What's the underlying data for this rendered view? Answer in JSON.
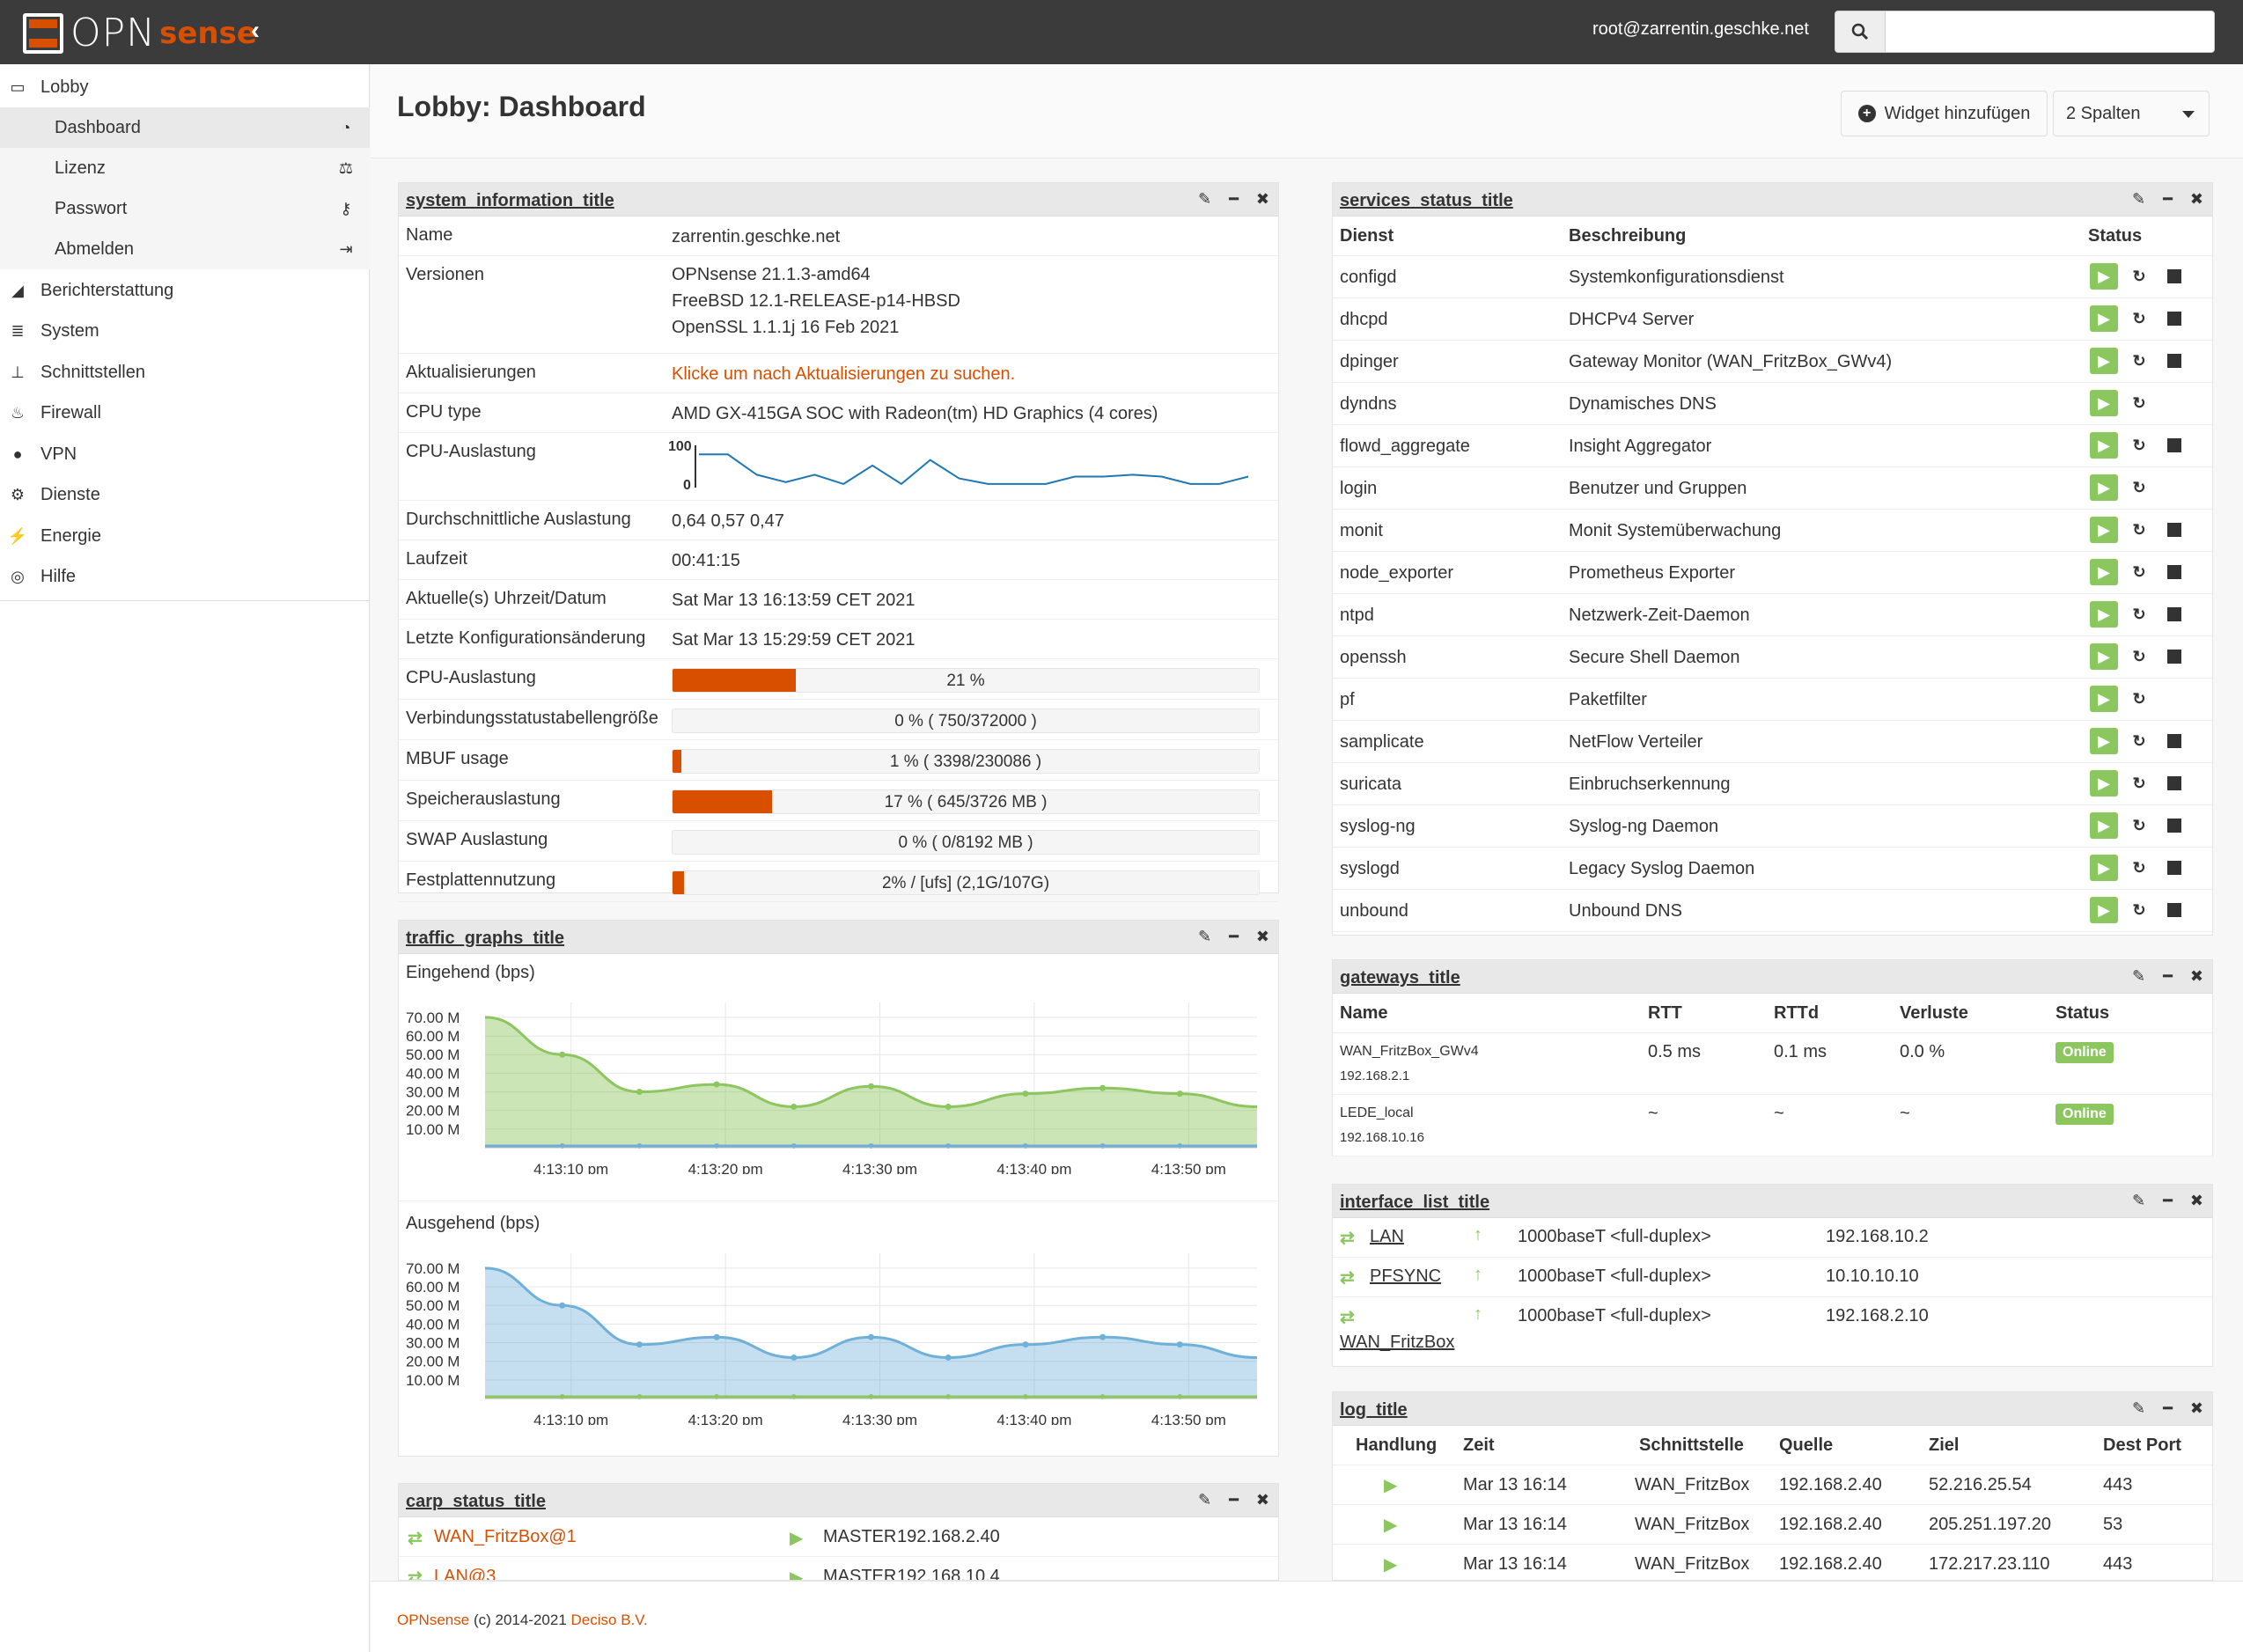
{
  "header": {
    "logo_text": "OPN",
    "logo_accent": "sense",
    "collapse_icon": "chevron-left-icon",
    "user": "root@zarrentin.geschke.net",
    "search_placeholder": ""
  },
  "sidebar": {
    "items": [
      {
        "label": "Lobby",
        "icon": "laptop-icon"
      },
      {
        "label": "Berichterstattung",
        "icon": "area-chart-icon"
      },
      {
        "label": "System",
        "icon": "server-icon"
      },
      {
        "label": "Schnittstellen",
        "icon": "sitemap-icon"
      },
      {
        "label": "Firewall",
        "icon": "fire-icon"
      },
      {
        "label": "VPN",
        "icon": "globe-icon"
      },
      {
        "label": "Dienste",
        "icon": "cog-icon"
      },
      {
        "label": "Energie",
        "icon": "plug-icon"
      },
      {
        "label": "Hilfe",
        "icon": "life-ring-icon"
      }
    ],
    "lobby_sub": [
      {
        "label": "Dashboard",
        "icon": "dashboard-icon"
      },
      {
        "label": "Lizenz",
        "icon": "balance-scale-icon"
      },
      {
        "label": "Passwort",
        "icon": "key-icon"
      },
      {
        "label": "Abmelden",
        "icon": "sign-out-icon"
      }
    ]
  },
  "page": {
    "title": "Lobby: Dashboard",
    "add_widget_label": "Widget hinzufügen",
    "columns_label": "2 Spalten"
  },
  "system_info": {
    "title": "system_information_title",
    "rows": {
      "name_k": "Name",
      "name_v": "zarrentin.geschke.net",
      "ver_k": "Versionen",
      "ver_v1": "OPNsense 21.1.3-amd64",
      "ver_v2": "FreeBSD 12.1-RELEASE-p14-HBSD",
      "ver_v3": "OpenSSL 1.1.1j 16 Feb 2021",
      "upd_k": "Aktualisierungen",
      "upd_v": "Klicke um nach Aktualisierungen zu suchen.",
      "cpu_k": "CPU type",
      "cpu_v": "AMD GX-415GA SOC with Radeon(tm) HD Graphics (4 cores)",
      "cpul_k": "CPU-Auslastung",
      "load_k": "Durchschnittliche Auslastung",
      "load_v": "0,64 0,57 0,47",
      "up_k": "Laufzeit",
      "up_v": "00:41:15",
      "time_k": "Aktuelle(s) Uhrzeit/Datum",
      "time_v": "Sat Mar 13 16:13:59 CET 2021",
      "cfg_k": "Letzte Konfigurationsänderung",
      "cfg_v": "Sat Mar 13 15:29:59 CET 2021"
    },
    "cpu_spark": {
      "ymax": "100",
      "ymin": "0",
      "values": [
        85,
        85,
        30,
        10,
        30,
        5,
        55,
        5,
        70,
        20,
        5,
        5,
        5,
        25,
        25,
        30,
        25,
        5,
        5,
        25
      ]
    },
    "bars": [
      {
        "label": "CPU-Auslastung",
        "fraction": 0.21,
        "text": "21 %"
      },
      {
        "label": "Verbindungsstatustabellengröße",
        "fraction": 0.0,
        "text": "0 % ( 750/372000 )"
      },
      {
        "label": "MBUF usage",
        "fraction": 0.01,
        "text": "1 % ( 3398/230086 )"
      },
      {
        "label": "Speicherauslastung",
        "fraction": 0.17,
        "text": "17 % ( 645/3726 MB )"
      },
      {
        "label": "SWAP Auslastung",
        "fraction": 0.0,
        "text": "0 % ( 0/8192 MB )"
      },
      {
        "label": "Festplattennutzung",
        "fraction": 0.02,
        "text": "2% / [ufs] (2,1G/107G)"
      }
    ]
  },
  "traffic": {
    "title": "traffic_graphs_title",
    "in_label": "Eingehend (bps)",
    "out_label": "Ausgehend (bps)",
    "y_ticks": [
      "70.00 M",
      "60.00 M",
      "50.00 M",
      "40.00 M",
      "30.00 M",
      "20.00 M",
      "10.00 M"
    ],
    "x_ticks": [
      "4:13:10 pm",
      "4:13:20 pm",
      "4:13:30 pm",
      "4:13:40 pm",
      "4:13:50 pm"
    ],
    "in_values": [
      70,
      50,
      30,
      34,
      22,
      33,
      22,
      29,
      32,
      29,
      22
    ],
    "out_values": [
      70,
      50,
      29,
      33,
      22,
      33,
      22,
      29,
      33,
      29,
      22
    ],
    "in_color": "#8cc65f",
    "out_color": "#6fb0d9"
  },
  "carp": {
    "title": "carp_status_title",
    "rows": [
      {
        "iface": "WAN_FritzBox@1",
        "state": "MASTER",
        "ip": "192.168.2.40"
      },
      {
        "iface": "LAN@3",
        "state": "MASTER",
        "ip": "192.168.10.4"
      }
    ]
  },
  "services": {
    "title": "services_status_title",
    "headers": {
      "dienst": "Dienst",
      "beschreibung": "Beschreibung",
      "status": "Status"
    },
    "rows": [
      {
        "name": "configd",
        "desc": "Systemkonfigurationsdienst",
        "stop": true
      },
      {
        "name": "dhcpd",
        "desc": "DHCPv4 Server",
        "stop": true
      },
      {
        "name": "dpinger",
        "desc": "Gateway Monitor (WAN_FritzBox_GWv4)",
        "stop": true
      },
      {
        "name": "dyndns",
        "desc": "Dynamisches DNS",
        "stop": false
      },
      {
        "name": "flowd_aggregate",
        "desc": "Insight Aggregator",
        "stop": true
      },
      {
        "name": "login",
        "desc": "Benutzer und Gruppen",
        "stop": false
      },
      {
        "name": "monit",
        "desc": "Monit Systemüberwachung",
        "stop": true
      },
      {
        "name": "node_exporter",
        "desc": "Prometheus Exporter",
        "stop": true
      },
      {
        "name": "ntpd",
        "desc": "Netzwerk-Zeit-Daemon",
        "stop": true
      },
      {
        "name": "openssh",
        "desc": "Secure Shell Daemon",
        "stop": true
      },
      {
        "name": "pf",
        "desc": "Paketfilter",
        "stop": false
      },
      {
        "name": "samplicate",
        "desc": "NetFlow Verteiler",
        "stop": true
      },
      {
        "name": "suricata",
        "desc": "Einbruchserkennung",
        "stop": true
      },
      {
        "name": "syslog-ng",
        "desc": "Syslog-ng Daemon",
        "stop": true
      },
      {
        "name": "syslogd",
        "desc": "Legacy Syslog Daemon",
        "stop": true
      },
      {
        "name": "unbound",
        "desc": "Unbound DNS",
        "stop": true
      }
    ]
  },
  "gateways": {
    "title": "gateways_title",
    "headers": {
      "name": "Name",
      "rtt": "RTT",
      "rttd": "RTTd",
      "loss": "Verluste",
      "status": "Status"
    },
    "rows": [
      {
        "name": "WAN_FritzBox_GWv4",
        "ip": "192.168.2.1",
        "rtt": "0.5 ms",
        "rttd": "0.1 ms",
        "loss": "0.0 %",
        "status": "Online"
      },
      {
        "name": "LEDE_local",
        "ip": "192.168.10.16",
        "rtt": "~",
        "rttd": "~",
        "loss": "~",
        "status": "Online"
      }
    ]
  },
  "interfaces": {
    "title": "interface_list_title",
    "rows": [
      {
        "name": "LAN",
        "media": "1000baseT <full-duplex>",
        "ip": "192.168.10.2"
      },
      {
        "name": "PFSYNC",
        "media": "1000baseT <full-duplex>",
        "ip": "10.10.10.10"
      },
      {
        "name": "WAN_FritzBox",
        "media": "1000baseT <full-duplex>",
        "ip": "192.168.2.10"
      }
    ]
  },
  "log": {
    "title": "log_title",
    "headers": {
      "action": "Handlung",
      "time": "Zeit",
      "iface": "Schnittstelle",
      "src": "Quelle",
      "dst": "Ziel",
      "port": "Dest Port"
    },
    "rows": [
      {
        "time": "Mar 13 16:14",
        "iface": "WAN_FritzBox",
        "src": "192.168.2.40",
        "dst": "52.216.25.54",
        "port": "443"
      },
      {
        "time": "Mar 13 16:14",
        "iface": "WAN_FritzBox",
        "src": "192.168.2.40",
        "dst": "205.251.197.20",
        "port": "53"
      },
      {
        "time": "Mar 13 16:14",
        "iface": "WAN_FritzBox",
        "src": "192.168.2.40",
        "dst": "172.217.23.110",
        "port": "443"
      }
    ]
  },
  "footer": {
    "brand": "OPNsense",
    "copy": "(c) 2014-2021",
    "company": "Deciso B.V."
  },
  "colors": {
    "accent": "#d94f00",
    "green": "#8cc65f",
    "topbar": "#3b3b3b"
  }
}
